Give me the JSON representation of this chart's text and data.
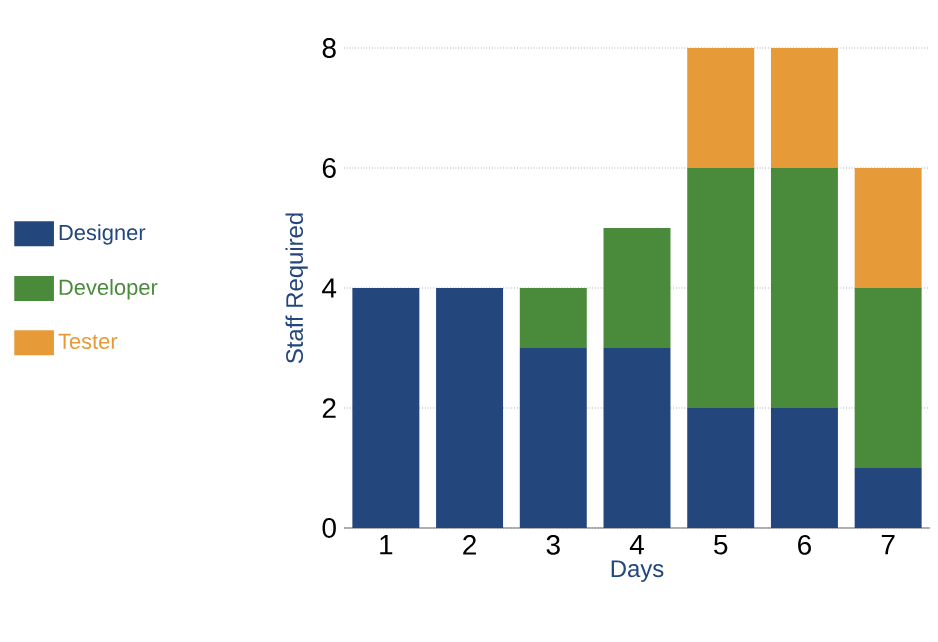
{
  "chart_data": {
    "type": "bar",
    "stacked": true,
    "xlabel": "Days",
    "ylabel": "Staff Required",
    "categories": [
      "1",
      "2",
      "3",
      "4",
      "5",
      "6",
      "7"
    ],
    "series": [
      {
        "name": "Designer",
        "color": "#23467c",
        "values": [
          4,
          4,
          3,
          3,
          2,
          2,
          1
        ]
      },
      {
        "name": "Developer",
        "color": "#4a8b3b",
        "values": [
          0,
          0,
          1,
          2,
          4,
          4,
          3
        ]
      },
      {
        "name": "Tester",
        "color": "#e69a38",
        "values": [
          0,
          0,
          0,
          0,
          2,
          2,
          2
        ]
      }
    ],
    "ylim": [
      0,
      8
    ],
    "yticks": [
      0,
      2,
      4,
      6,
      8
    ],
    "grid": "y",
    "legend": "left"
  }
}
